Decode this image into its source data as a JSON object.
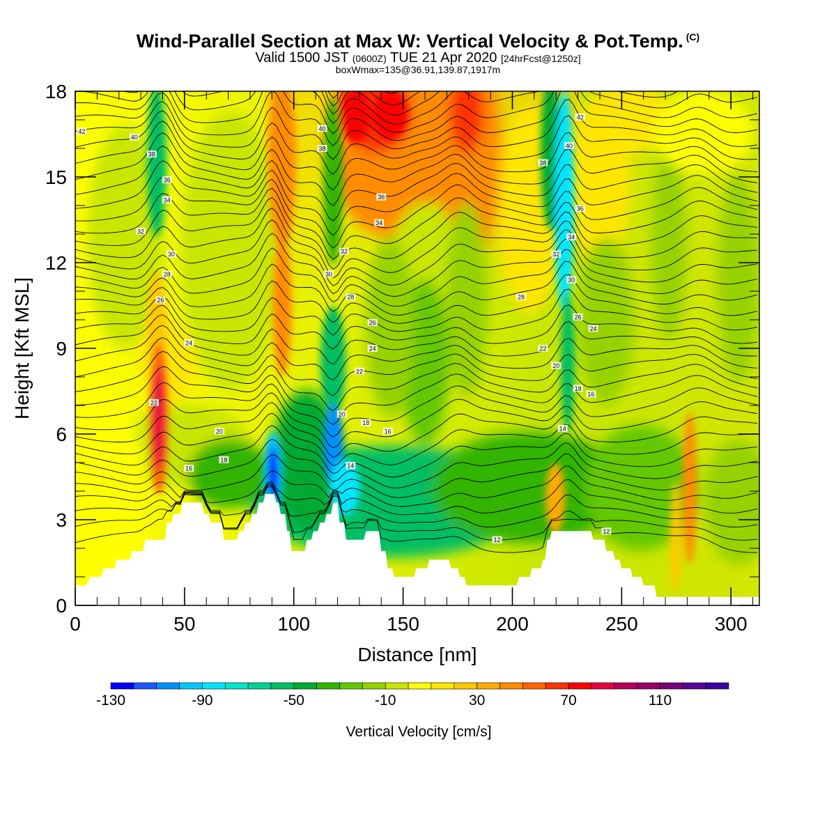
{
  "header": {
    "title": "Wind-Parallel Section at Max W: Vertical Velocity & Pot.Temp.",
    "copyright": "(C)",
    "valid_prefix": "Valid 1500 JST",
    "valid_utc": "(0600Z)",
    "valid_date": "TUE 21 Apr 2020",
    "forecast": "[24hrFcst@1250z]",
    "box_info": "boxWmax=135@36.91,139.87,1917m"
  },
  "chart_data": {
    "type": "heatmap",
    "xlabel": "Distance [nm]",
    "ylabel": "Height [Kft MSL]",
    "xlim": [
      0,
      313
    ],
    "ylim": [
      0,
      18
    ],
    "x_ticks": [
      0,
      50,
      100,
      150,
      200,
      250,
      300
    ],
    "y_ticks": [
      0,
      3,
      6,
      9,
      12,
      15,
      18
    ],
    "colorbar": {
      "label": "Vertical Velocity [cm/s]",
      "min": -130,
      "max": 140,
      "step": 10,
      "tick_values": [
        -130,
        -90,
        -50,
        -10,
        30,
        70,
        110
      ],
      "colors": [
        "#0000ff",
        "#1e56ff",
        "#0090ff",
        "#00c8ff",
        "#00e6ff",
        "#00e6c8",
        "#00d296",
        "#00be64",
        "#00aa32",
        "#32b400",
        "#64c800",
        "#96d200",
        "#c8e600",
        "#ffff00",
        "#ffe600",
        "#ffc800",
        "#ffaa00",
        "#ff8c00",
        "#ff6400",
        "#ff3200",
        "#ff0000",
        "#e6003c",
        "#b4005a",
        "#960064",
        "#780078",
        "#5a0096",
        "#3c00a0"
      ]
    },
    "terrain_height": [
      {
        "x": 0,
        "y": 0.7
      },
      {
        "x": 5,
        "y": 0.7
      },
      {
        "x": 7,
        "y": 1.0
      },
      {
        "x": 12,
        "y": 1.0
      },
      {
        "x": 13,
        "y": 1.3
      },
      {
        "x": 18,
        "y": 1.3
      },
      {
        "x": 19,
        "y": 1.6
      },
      {
        "x": 25,
        "y": 1.6
      },
      {
        "x": 26,
        "y": 1.9
      },
      {
        "x": 31,
        "y": 1.9
      },
      {
        "x": 32,
        "y": 2.3
      },
      {
        "x": 41,
        "y": 2.3
      },
      {
        "x": 42,
        "y": 2.9
      },
      {
        "x": 44,
        "y": 2.9
      },
      {
        "x": 45,
        "y": 3.2
      },
      {
        "x": 48,
        "y": 3.2
      },
      {
        "x": 49,
        "y": 3.6
      },
      {
        "x": 58,
        "y": 3.6
      },
      {
        "x": 59,
        "y": 3.2
      },
      {
        "x": 61,
        "y": 3.2
      },
      {
        "x": 62,
        "y": 2.9
      },
      {
        "x": 67,
        "y": 2.9
      },
      {
        "x": 68,
        "y": 2.3
      },
      {
        "x": 74,
        "y": 2.3
      },
      {
        "x": 75,
        "y": 2.6
      },
      {
        "x": 77,
        "y": 2.6
      },
      {
        "x": 78,
        "y": 2.9
      },
      {
        "x": 80,
        "y": 2.9
      },
      {
        "x": 81,
        "y": 3.2
      },
      {
        "x": 83,
        "y": 3.2
      },
      {
        "x": 84,
        "y": 3.6
      },
      {
        "x": 86,
        "y": 3.6
      },
      {
        "x": 87,
        "y": 3.9
      },
      {
        "x": 91,
        "y": 3.9
      },
      {
        "x": 92,
        "y": 3.6
      },
      {
        "x": 93,
        "y": 3.6
      },
      {
        "x": 94,
        "y": 3.2
      },
      {
        "x": 96,
        "y": 3.2
      },
      {
        "x": 97,
        "y": 2.6
      },
      {
        "x": 98,
        "y": 2.6
      },
      {
        "x": 99,
        "y": 1.9
      },
      {
        "x": 105,
        "y": 1.9
      },
      {
        "x": 106,
        "y": 2.3
      },
      {
        "x": 108,
        "y": 2.3
      },
      {
        "x": 109,
        "y": 2.6
      },
      {
        "x": 111,
        "y": 2.6
      },
      {
        "x": 112,
        "y": 2.9
      },
      {
        "x": 114,
        "y": 2.9
      },
      {
        "x": 115,
        "y": 3.2
      },
      {
        "x": 117,
        "y": 3.2
      },
      {
        "x": 118,
        "y": 3.6
      },
      {
        "x": 120,
        "y": 3.6
      },
      {
        "x": 121,
        "y": 2.9
      },
      {
        "x": 123,
        "y": 2.9
      },
      {
        "x": 124,
        "y": 2.3
      },
      {
        "x": 132,
        "y": 2.3
      },
      {
        "x": 133,
        "y": 2.6
      },
      {
        "x": 139,
        "y": 2.6
      },
      {
        "x": 140,
        "y": 1.9
      },
      {
        "x": 142,
        "y": 1.9
      },
      {
        "x": 143,
        "y": 1.3
      },
      {
        "x": 145,
        "y": 1.3
      },
      {
        "x": 146,
        "y": 1.0
      },
      {
        "x": 155,
        "y": 1.0
      },
      {
        "x": 156,
        "y": 1.3
      },
      {
        "x": 161,
        "y": 1.3
      },
      {
        "x": 162,
        "y": 1.6
      },
      {
        "x": 171,
        "y": 1.6
      },
      {
        "x": 172,
        "y": 1.3
      },
      {
        "x": 175,
        "y": 1.3
      },
      {
        "x": 176,
        "y": 1.0
      },
      {
        "x": 178,
        "y": 1.0
      },
      {
        "x": 179,
        "y": 0.7
      },
      {
        "x": 202,
        "y": 0.7
      },
      {
        "x": 203,
        "y": 1.0
      },
      {
        "x": 208,
        "y": 1.0
      },
      {
        "x": 209,
        "y": 1.3
      },
      {
        "x": 213,
        "y": 1.3
      },
      {
        "x": 214,
        "y": 1.6
      },
      {
        "x": 215,
        "y": 1.6
      },
      {
        "x": 216,
        "y": 2.3
      },
      {
        "x": 217,
        "y": 2.3
      },
      {
        "x": 218,
        "y": 2.6
      },
      {
        "x": 236,
        "y": 2.6
      },
      {
        "x": 237,
        "y": 2.3
      },
      {
        "x": 242,
        "y": 2.3
      },
      {
        "x": 243,
        "y": 1.9
      },
      {
        "x": 246,
        "y": 1.9
      },
      {
        "x": 247,
        "y": 1.6
      },
      {
        "x": 249,
        "y": 1.6
      },
      {
        "x": 250,
        "y": 1.3
      },
      {
        "x": 254,
        "y": 1.3
      },
      {
        "x": 255,
        "y": 1.0
      },
      {
        "x": 259,
        "y": 1.0
      },
      {
        "x": 260,
        "y": 0.7
      },
      {
        "x": 265,
        "y": 0.7
      },
      {
        "x": 266,
        "y": 0.3
      },
      {
        "x": 313,
        "y": 0.3
      }
    ],
    "theta_labels": [
      {
        "x": 3,
        "y": 16.6,
        "t": "42"
      },
      {
        "x": 27,
        "y": 16.4,
        "t": "40"
      },
      {
        "x": 35,
        "y": 15.8,
        "t": "38"
      },
      {
        "x": 42,
        "y": 14.9,
        "t": "36"
      },
      {
        "x": 42,
        "y": 14.2,
        "t": "34"
      },
      {
        "x": 30,
        "y": 13.1,
        "t": "32"
      },
      {
        "x": 44,
        "y": 12.3,
        "t": "30"
      },
      {
        "x": 42,
        "y": 11.6,
        "t": "28"
      },
      {
        "x": 39,
        "y": 10.7,
        "t": "26"
      },
      {
        "x": 52,
        "y": 9.2,
        "t": "24"
      },
      {
        "x": 36,
        "y": 7.1,
        "t": "22"
      },
      {
        "x": 66,
        "y": 6.1,
        "t": "20"
      },
      {
        "x": 68,
        "y": 5.1,
        "t": "18"
      },
      {
        "x": 52,
        "y": 4.8,
        "t": "16"
      },
      {
        "x": 113,
        "y": 16.7,
        "t": "40"
      },
      {
        "x": 113,
        "y": 16.0,
        "t": "38"
      },
      {
        "x": 140,
        "y": 14.3,
        "t": "36"
      },
      {
        "x": 139,
        "y": 13.4,
        "t": "34"
      },
      {
        "x": 123,
        "y": 12.4,
        "t": "32"
      },
      {
        "x": 116,
        "y": 11.6,
        "t": "30"
      },
      {
        "x": 126,
        "y": 10.8,
        "t": "28"
      },
      {
        "x": 136,
        "y": 9.9,
        "t": "26"
      },
      {
        "x": 136,
        "y": 9.0,
        "t": "24"
      },
      {
        "x": 130,
        "y": 8.2,
        "t": "22"
      },
      {
        "x": 122,
        "y": 6.7,
        "t": "20"
      },
      {
        "x": 133,
        "y": 6.4,
        "t": "18"
      },
      {
        "x": 143,
        "y": 6.1,
        "t": "16"
      },
      {
        "x": 126,
        "y": 4.9,
        "t": "14"
      },
      {
        "x": 231,
        "y": 17.1,
        "t": "42"
      },
      {
        "x": 226,
        "y": 16.1,
        "t": "40"
      },
      {
        "x": 214,
        "y": 15.5,
        "t": "38"
      },
      {
        "x": 231,
        "y": 13.9,
        "t": "36"
      },
      {
        "x": 227,
        "y": 12.9,
        "t": "34"
      },
      {
        "x": 220,
        "y": 12.3,
        "t": "32"
      },
      {
        "x": 227,
        "y": 11.4,
        "t": "30"
      },
      {
        "x": 204,
        "y": 10.8,
        "t": "28"
      },
      {
        "x": 230,
        "y": 10.1,
        "t": "26"
      },
      {
        "x": 237,
        "y": 9.7,
        "t": "24"
      },
      {
        "x": 214,
        "y": 9.0,
        "t": "22"
      },
      {
        "x": 220,
        "y": 8.4,
        "t": "20"
      },
      {
        "x": 230,
        "y": 7.6,
        "t": "18"
      },
      {
        "x": 236,
        "y": 7.4,
        "t": "16"
      },
      {
        "x": 223,
        "y": 6.2,
        "t": "14"
      },
      {
        "x": 193,
        "y": 2.3,
        "t": "12"
      },
      {
        "x": 243,
        "y": 2.6,
        "t": "12"
      }
    ]
  }
}
